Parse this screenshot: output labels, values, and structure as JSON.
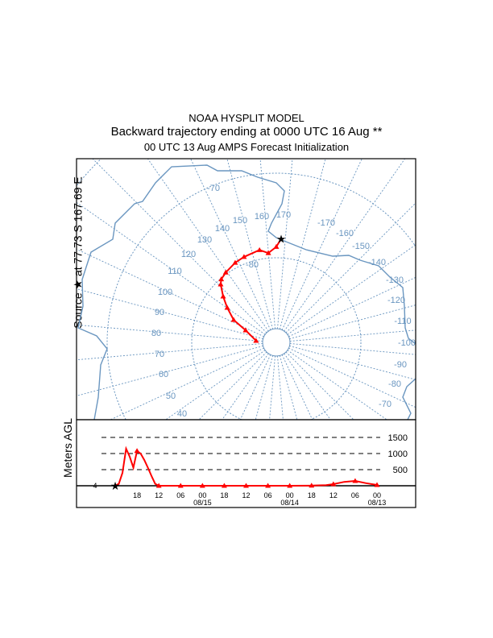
{
  "header": {
    "title": "NOAA HYSPLIT MODEL",
    "subtitle": "Backward trajectory ending at 0000 UTC 16 Aug **",
    "init_line": "00 UTC 13 Aug    AMPS  Forecast Initialization"
  },
  "source_label": "Source ★ at  77.73 S  167.69 E",
  "map": {
    "projection": "south polar stereographic",
    "graticule_color": "#6a96c0",
    "coast_color": "#6a96c0",
    "latitude_labels": [
      "-80",
      "-70"
    ],
    "longitude_labels": [
      "150",
      "160",
      "170",
      "-170",
      "-160",
      "-150",
      "-140",
      "-130",
      "-120",
      "-110",
      "-100",
      "-90",
      "-80",
      "-70",
      "140",
      "130",
      "120",
      "110",
      "100",
      "90",
      "80",
      "70",
      "60",
      "50",
      "40"
    ],
    "source": {
      "lat": -77.73,
      "lon": 167.69,
      "marker": "star"
    },
    "trajectory_color": "#ff0000",
    "trajectory": [
      {
        "lat": -77.73,
        "lon": 167.69
      },
      {
        "lat": -78.7,
        "lon": 165.0
      },
      {
        "lat": -79.4,
        "lon": 159.9
      },
      {
        "lat": -78.9,
        "lon": 154.7
      },
      {
        "lat": -79.2,
        "lon": 144.3
      },
      {
        "lat": -79.4,
        "lon": 137.7
      },
      {
        "lat": -79.8,
        "lon": 129.1
      },
      {
        "lat": -80.1,
        "lon": 123.9
      },
      {
        "lat": -80.5,
        "lon": 121.2
      },
      {
        "lat": -81.7,
        "lon": 115.8
      },
      {
        "lat": -82.9,
        "lon": 110.2
      },
      {
        "lat": -84.3,
        "lon": 102.8
      },
      {
        "lat": -86.1,
        "lon": 96.5
      },
      {
        "lat": -87.6,
        "lon": 79.6
      }
    ]
  },
  "chart_data": {
    "type": "line",
    "ylabel": "Meters AGL",
    "source_height_label": "4",
    "y_ticks": [
      "500",
      "1000",
      "1500"
    ],
    "x_tick_labels": [
      "18",
      "12",
      "06",
      "00",
      "18",
      "12",
      "06",
      "00",
      "18",
      "12",
      "06",
      "00"
    ],
    "date_labels": [
      "08/15",
      "08/14",
      "08/13"
    ],
    "hours_back_range": [
      0,
      72
    ],
    "ylim": [
      0,
      1500
    ],
    "series": [
      {
        "color": "#ff0000",
        "hours_back": [
          0,
          1,
          2,
          3,
          4,
          5,
          6,
          7,
          8,
          9,
          10,
          11,
          12,
          18,
          24,
          30,
          36,
          42,
          48,
          54,
          58,
          60,
          63,
          66,
          69,
          72
        ],
        "height_m": [
          4,
          60,
          400,
          1150,
          900,
          560,
          1080,
          1000,
          800,
          560,
          300,
          60,
          0,
          0,
          0,
          0,
          0,
          0,
          0,
          5,
          20,
          50,
          120,
          150,
          80,
          25
        ]
      }
    ]
  }
}
